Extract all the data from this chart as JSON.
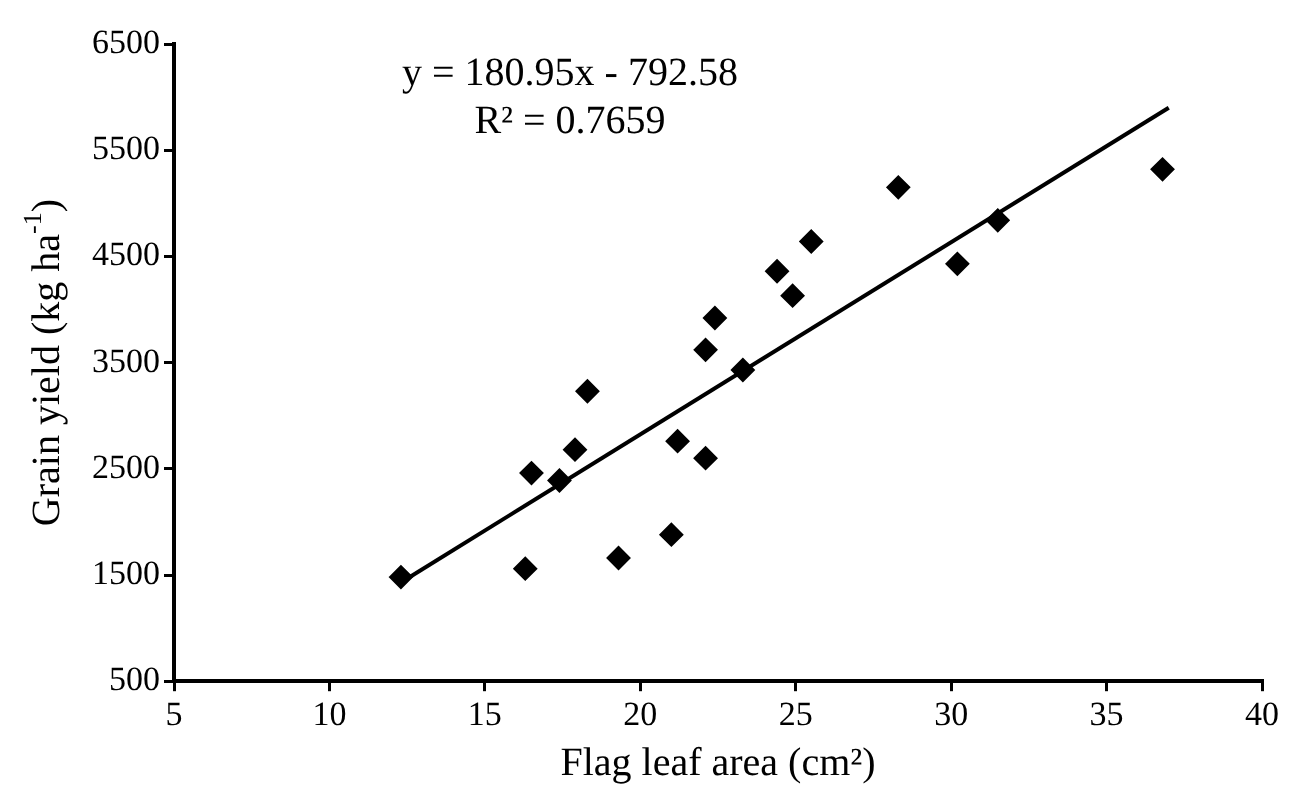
{
  "chart_data": {
    "type": "scatter",
    "xlabel": "Flag leaf area (cm²)",
    "ylabel": "Grain yield (kg ha$^{-1}$)",
    "annotations": [
      "y = 180.95x - 792.58",
      "R² = 0.7659"
    ],
    "series": [
      {
        "color": "#000000",
        "marker": "diamond",
        "x": [
          12.3,
          16.3,
          16.5,
          17.4,
          17.9,
          18.3,
          19.3,
          21.0,
          21.2,
          22.1,
          22.1,
          22.4,
          23.3,
          24.4,
          24.9,
          25.5,
          28.3,
          30.2,
          31.5,
          36.8
        ],
        "values": [
          1480,
          1560,
          2460,
          2390,
          2680,
          3230,
          1660,
          1880,
          2760,
          2600,
          3620,
          3920,
          3430,
          4360,
          4130,
          4640,
          5150,
          4430,
          4840,
          5320
        ]
      },
      {
        "type": "line",
        "color": "#000000",
        "marker": "none",
        "x": [
          12.3,
          37.0
        ],
        "values": [
          1430,
          5900
        ]
      }
    ],
    "xlim": [
      5,
      40
    ],
    "xticks": [
      5,
      10,
      15,
      20,
      25,
      30,
      35,
      40
    ],
    "ylim": [
      500,
      6500
    ],
    "yticks": [
      500,
      1500,
      2500,
      3500,
      4500,
      5500,
      6500
    ],
    "grid": false,
    "legend": false
  }
}
